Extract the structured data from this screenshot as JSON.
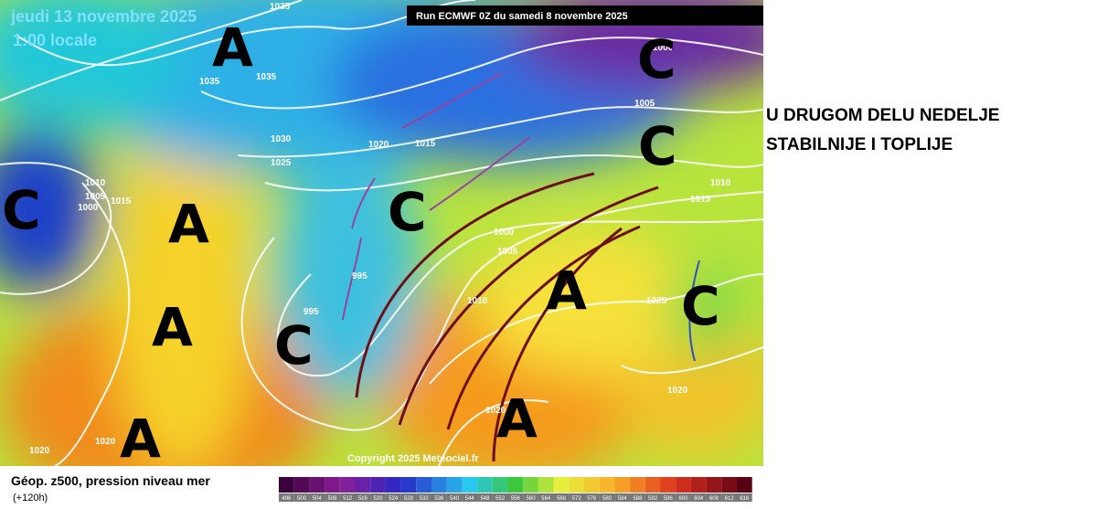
{
  "map": {
    "valid_date": "jeudi 13 novembre 2025",
    "valid_time": "1:00 locale",
    "run": "Run ECMWF 0Z du samedi 8 novembre 2025",
    "copyright": "Copyright 2025 Meteociel.fr",
    "highs": [
      "A",
      "A",
      "A",
      "A",
      "A",
      "A"
    ],
    "lows": [
      "C",
      "C",
      "C",
      "C",
      "C",
      "C"
    ],
    "isobar_labels": [
      "1035",
      "1035",
      "1035",
      "1030",
      "1025",
      "1020",
      "1015",
      "1010",
      "1005",
      "1015",
      "1000",
      "995",
      "995",
      "1000",
      "1005",
      "1010",
      "1025",
      "1020",
      "1020",
      "1020",
      "1020",
      "1000",
      "1005",
      "1010",
      "1015"
    ]
  },
  "annotation": [
    "U DRUGOM DELU NEDELJE",
    "STABILNIJE I TOPLIJE"
  ],
  "legend": {
    "title": "Géop. z500, pression niveau mer",
    "subtitle": "(+120h)",
    "labels": [
      "496",
      "500",
      "504",
      "508",
      "512",
      "516",
      "520",
      "524",
      "528",
      "532",
      "536",
      "540",
      "544",
      "548",
      "552",
      "556",
      "560",
      "564",
      "568",
      "572",
      "576",
      "580",
      "584",
      "588",
      "592",
      "596",
      "600",
      "604",
      "608",
      "612",
      "616"
    ]
  }
}
